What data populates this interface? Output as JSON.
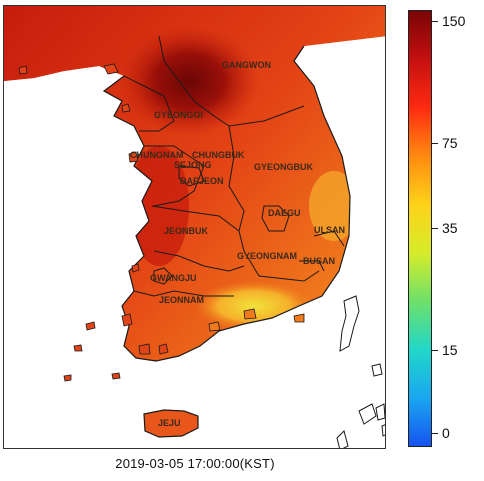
{
  "map": {
    "timestamp": "2019-03-05 17:00:00(KST)",
    "regions": [
      {
        "id": "gangwon",
        "label": "GANGWON"
      },
      {
        "id": "gyeonggi",
        "label": "GYEONGGI"
      },
      {
        "id": "chungnam",
        "label": "CHUNGNAM"
      },
      {
        "id": "chungbuk",
        "label": "CHUNGBUK"
      },
      {
        "id": "sejong",
        "label": "SEJONG"
      },
      {
        "id": "daejeon",
        "label": "DAEJEON"
      },
      {
        "id": "gyeongbuk",
        "label": "GYEONGBUK"
      },
      {
        "id": "daegu",
        "label": "DAEGU"
      },
      {
        "id": "ulsan",
        "label": "ULSAN"
      },
      {
        "id": "jeonbuk",
        "label": "JEONBUK"
      },
      {
        "id": "gyeongnam",
        "label": "GYEONGNAM"
      },
      {
        "id": "busan",
        "label": "BUSAN"
      },
      {
        "id": "gwangju",
        "label": "GWANGJU"
      },
      {
        "id": "jeonnam",
        "label": "JEONNAM"
      },
      {
        "id": "jeju",
        "label": "JEJU"
      }
    ],
    "colors": {
      "sea_background": "#ffffff",
      "land_outline": "#1a1a1a",
      "very_high": "#7a0a0a",
      "high": "#c8200e",
      "mid_high": "#e8461a",
      "mid": "#f07a1c",
      "mid_low": "#f5a623",
      "low": "#f7e03a"
    }
  },
  "colorbar": {
    "labels": [
      "150",
      "75",
      "35",
      "15",
      "0"
    ],
    "stops": [
      "#7a0505",
      "#c41010",
      "#ff2a10",
      "#ff8a10",
      "#ffd21a",
      "#d6ec2a",
      "#6ee06a",
      "#22d7c8",
      "#1aa7f0",
      "#1655f0"
    ]
  }
}
